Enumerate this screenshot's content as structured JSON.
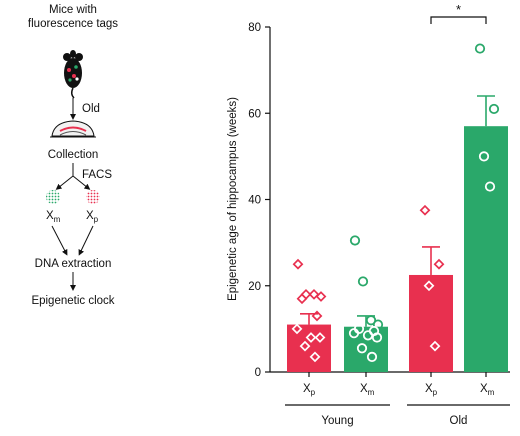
{
  "workflow": {
    "title_line1": "Mice with",
    "title_line2": "fluorescence tags",
    "step_old": "Old",
    "step_collection": "Collection",
    "step_facs": "FACS",
    "label_xm": "X",
    "label_xm_sub": "m",
    "label_xp": "X",
    "label_xp_sub": "p",
    "step_dna": "DNA extraction",
    "step_clock": "Epigenetic clock"
  },
  "colors": {
    "red": "#e8304f",
    "green": "#2aa86a",
    "axis": "#111111",
    "mouse": "#111111"
  },
  "chart_data": {
    "type": "bar",
    "ylabel": "Epigenetic age of hippocampus (weeks)",
    "ylim": [
      0,
      80
    ],
    "yticks": [
      0,
      20,
      40,
      60,
      80
    ],
    "groups": [
      {
        "label": "Young",
        "category_indices": [
          0,
          1
        ]
      },
      {
        "label": "Old",
        "category_indices": [
          2,
          3
        ]
      }
    ],
    "bars": [
      {
        "label_base": "X",
        "label_sub": "p",
        "group": "Young",
        "color": "red",
        "mean": 11,
        "sem_upper": 13.5,
        "points": [
          25,
          18,
          18,
          17.5,
          17,
          13,
          10,
          8,
          8,
          6,
          3.5
        ]
      },
      {
        "label_base": "X",
        "label_sub": "m",
        "group": "Young",
        "color": "green",
        "mean": 10.5,
        "sem_upper": 13,
        "points": [
          30.5,
          21,
          12,
          11,
          10,
          9.5,
          9,
          8.5,
          8,
          5.5,
          3.5
        ]
      },
      {
        "label_base": "X",
        "label_sub": "p",
        "group": "Old",
        "color": "red",
        "mean": 22.5,
        "sem_upper": 29,
        "points": [
          37.5,
          25,
          20,
          6
        ]
      },
      {
        "label_base": "X",
        "label_sub": "m",
        "group": "Old",
        "color": "green",
        "mean": 57,
        "sem_upper": 64,
        "points": [
          75,
          61,
          50,
          43
        ]
      }
    ],
    "significance": {
      "between": [
        2,
        3
      ],
      "label": "*"
    }
  }
}
